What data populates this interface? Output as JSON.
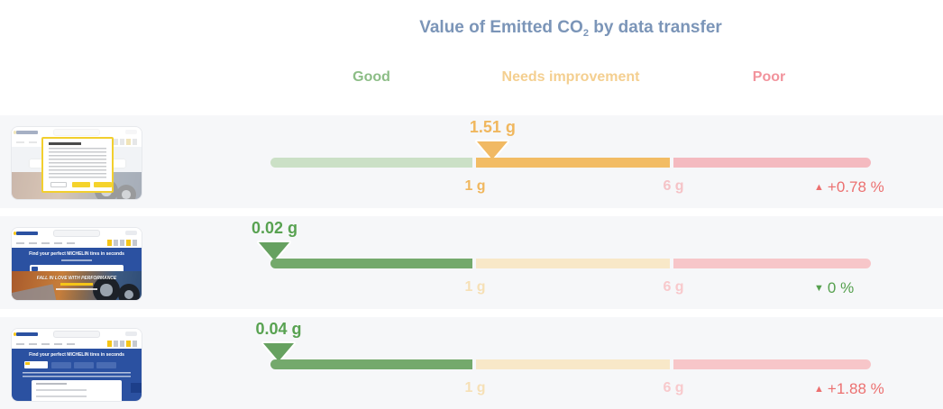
{
  "title": {
    "prefix": "Value of Emitted CO",
    "subscript": "2",
    "suffix": " by data transfer"
  },
  "zones": {
    "good": "Good",
    "mid": "Needs improvement",
    "poor": "Poor"
  },
  "colors": {
    "title_blue": "#7b95b8",
    "good_strong": "#74a96c",
    "good_faded": "#cbe0c6",
    "mid_strong": "#f2bc64",
    "mid_faded": "#f8e8c8",
    "poor_strong": "#f2939c",
    "poor_faded": "#f7c6c9",
    "row_background": "#f6f7f9"
  },
  "chart_data": {
    "type": "bullet",
    "title": "Value of Emitted CO2 by data transfer",
    "unit": "g",
    "zones": [
      {
        "label": "Good",
        "range_g": [
          0,
          1
        ],
        "color": "#74a96c"
      },
      {
        "label": "Needs improvement",
        "range_g": [
          1,
          6
        ],
        "color": "#f2bc64"
      },
      {
        "label": "Poor",
        "range_g": [
          6,
          null
        ],
        "color": "#f2939c"
      }
    ],
    "axis_labels": {
      "t1": "1 g",
      "t6": "6 g"
    },
    "rows": [
      {
        "value_g": 1.51,
        "value_label": "1.51 g",
        "zone": "needs-improvement",
        "change_pct": 0.78,
        "change": {
          "arrow": "▲",
          "text": "+0.78 %",
          "color": "#ec7070"
        }
      },
      {
        "value_g": 0.02,
        "value_label": "0.02 g",
        "zone": "good",
        "change_pct": 0,
        "change": {
          "arrow": "▼",
          "text": "0 %",
          "color": "#55a04e"
        }
      },
      {
        "value_g": 0.04,
        "value_label": "0.04 g",
        "zone": "good",
        "change_pct": 1.88,
        "change": {
          "arrow": "▲",
          "text": "+1.88 %",
          "color": "#ec7070"
        }
      }
    ]
  },
  "thumbnails": [
    {},
    {
      "hero": "Find your perfect MICHELIN tires in seconds",
      "caption": "FALL IN LOVE WITH PERFORMANCE"
    },
    {
      "hero": "Find your perfect MICHELIN tires in seconds"
    }
  ]
}
